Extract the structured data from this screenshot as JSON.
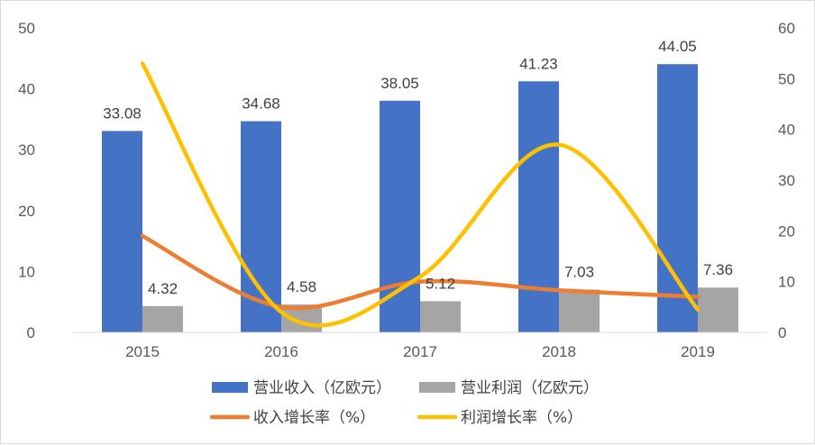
{
  "chart_data": {
    "type": "bar",
    "categories": [
      "2015",
      "2016",
      "2017",
      "2018",
      "2019"
    ],
    "series": [
      {
        "name": "营业收入（亿欧元）",
        "kind": "bar",
        "axis": "left",
        "color": "#4472C4",
        "values": [
          33.08,
          34.68,
          38.05,
          41.23,
          44.05
        ]
      },
      {
        "name": "营业利润（亿欧元）",
        "kind": "bar",
        "axis": "left",
        "color": "#A5A5A5",
        "values": [
          4.32,
          4.58,
          5.12,
          7.03,
          7.36
        ]
      },
      {
        "name": "收入增长率（%）",
        "kind": "line",
        "axis": "right",
        "color": "#ED7D31",
        "values": [
          19,
          5,
          10,
          8.3,
          7
        ]
      },
      {
        "name": "利润增长率（%）",
        "kind": "line",
        "axis": "right",
        "color": "#FFC000",
        "values": [
          53,
          4,
          11,
          37,
          4.5
        ]
      }
    ],
    "y_left": {
      "min": 0,
      "max": 50,
      "ticks": [
        "0",
        "10",
        "20",
        "30",
        "40",
        "50"
      ]
    },
    "y_right": {
      "min": 0,
      "max": 60,
      "ticks": [
        "0",
        "10",
        "20",
        "30",
        "40",
        "50",
        "60"
      ]
    },
    "data_labels": {
      "revenue": [
        "33.08",
        "34.68",
        "38.05",
        "41.23",
        "44.05"
      ],
      "profit": [
        "4.32",
        "4.58",
        "5.12",
        "7.03",
        "7.36"
      ]
    },
    "legend": {
      "row1": [
        "营业收入（亿欧元）",
        "营业利润（亿欧元）"
      ],
      "row2": [
        "收入增长率（%）",
        "利润增长率（%）"
      ],
      "placement": "bottom"
    },
    "grid": false
  }
}
